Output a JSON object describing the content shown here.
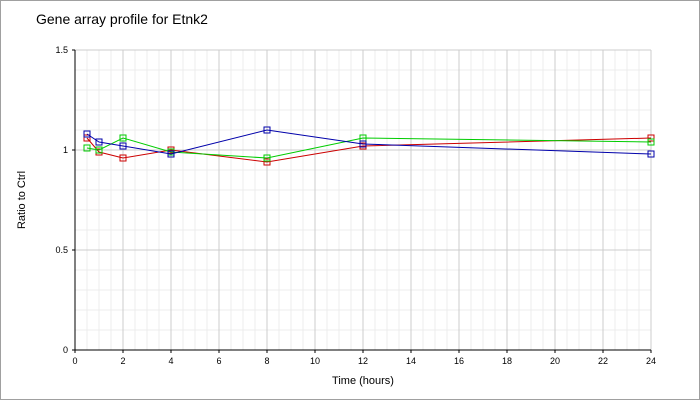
{
  "chart_data": {
    "type": "line",
    "title": "Gene array profile for Etnk2",
    "xlabel": "Time (hours)",
    "ylabel": "Ratio to Ctrl",
    "xlim": [
      0,
      24
    ],
    "ylim": [
      0,
      1.5
    ],
    "x_ticks": [
      0,
      2,
      4,
      6,
      8,
      10,
      12,
      14,
      16,
      18,
      20,
      22,
      24
    ],
    "y_ticks": [
      0,
      0.5,
      1,
      1.5
    ],
    "y_tick_labels": [
      "0",
      "0.5",
      "1",
      "1.5"
    ],
    "grid": true,
    "marker": "square",
    "series": [
      {
        "color": "#cc0000",
        "x": [
          0.5,
          1,
          2,
          4,
          8,
          12,
          24
        ],
        "y": [
          1.06,
          0.99,
          0.96,
          1.0,
          0.94,
          1.02,
          1.06
        ]
      },
      {
        "color": "#00cc00",
        "x": [
          0.5,
          1,
          2,
          4,
          8,
          12,
          24
        ],
        "y": [
          1.01,
          1.0,
          1.06,
          0.99,
          0.96,
          1.06,
          1.04
        ]
      },
      {
        "color": "#0000aa",
        "x": [
          0.5,
          1,
          2,
          4,
          8,
          12,
          24
        ],
        "y": [
          1.08,
          1.04,
          1.02,
          0.98,
          1.1,
          1.03,
          0.98
        ]
      }
    ]
  }
}
